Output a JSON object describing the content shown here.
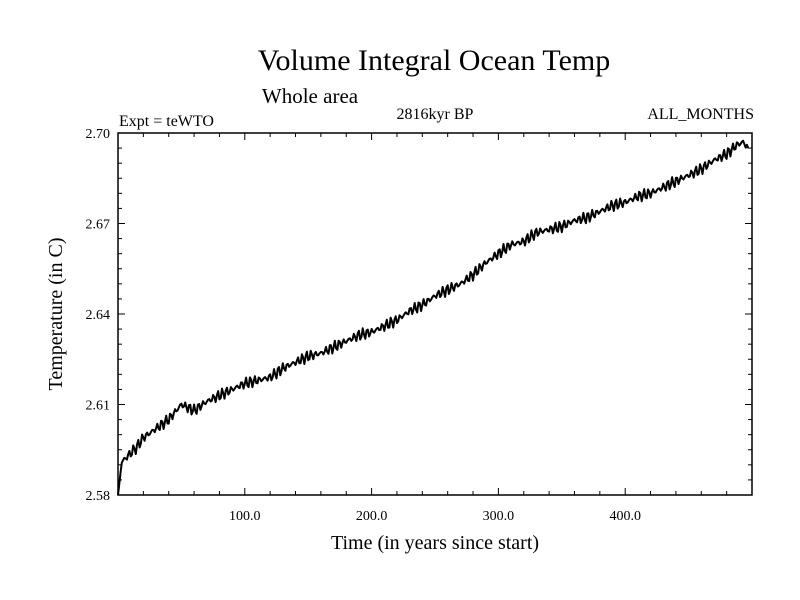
{
  "chart_data": {
    "type": "line",
    "title": "Volume Integral Ocean Temp",
    "subtitle": "Whole area",
    "annotations": {
      "left": "Expt = teWTO",
      "center": "2816kyr BP",
      "right": "ALL_MONTHS"
    },
    "xlabel": "Time (in years since start)",
    "ylabel": "Temperature (in C)",
    "xlim": [
      0,
      500
    ],
    "ylim": [
      2.58,
      2.7
    ],
    "x_ticks": [
      100,
      200,
      300,
      400
    ],
    "x_tick_labels": [
      "100.0",
      "200.0",
      "300.0",
      "400.0"
    ],
    "y_ticks": [
      2.58,
      2.61,
      2.64,
      2.67,
      2.7
    ],
    "y_tick_labels": [
      "2.58",
      "2.61",
      "2.64",
      "2.67",
      "2.70"
    ],
    "grid": false,
    "series": [
      {
        "name": "Volume Integral Ocean Temp",
        "x": [
          0,
          3,
          8,
          15,
          20,
          30,
          40,
          50,
          55,
          60,
          70,
          80,
          90,
          100,
          110,
          120,
          130,
          140,
          150,
          160,
          170,
          180,
          190,
          200,
          210,
          220,
          230,
          240,
          250,
          260,
          270,
          280,
          290,
          300,
          310,
          320,
          330,
          340,
          350,
          360,
          370,
          380,
          390,
          400,
          410,
          420,
          430,
          440,
          450,
          460,
          470,
          480,
          488,
          493,
          497
        ],
        "y": [
          2.58,
          2.591,
          2.593,
          2.596,
          2.599,
          2.602,
          2.605,
          2.61,
          2.609,
          2.608,
          2.611,
          2.613,
          2.615,
          2.617,
          2.618,
          2.619,
          2.622,
          2.624,
          2.626,
          2.627,
          2.629,
          2.631,
          2.633,
          2.634,
          2.636,
          2.638,
          2.641,
          2.643,
          2.646,
          2.648,
          2.65,
          2.653,
          2.657,
          2.66,
          2.663,
          2.664,
          2.667,
          2.668,
          2.669,
          2.671,
          2.672,
          2.674,
          2.676,
          2.677,
          2.679,
          2.68,
          2.682,
          2.684,
          2.686,
          2.688,
          2.691,
          2.693,
          2.696,
          2.697,
          2.695
        ]
      }
    ]
  }
}
